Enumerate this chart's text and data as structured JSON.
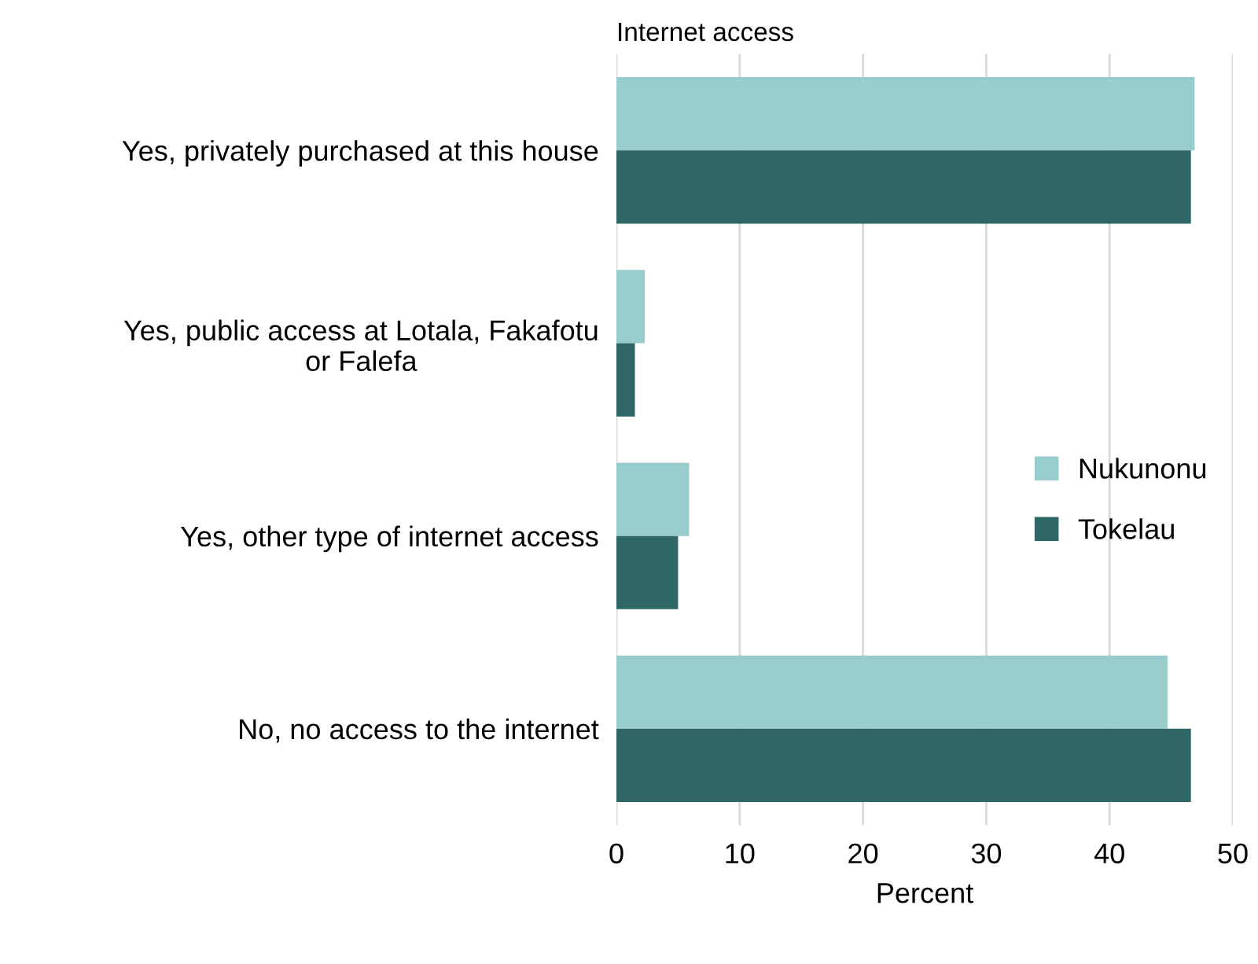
{
  "chart_data": {
    "type": "bar",
    "orientation": "horizontal",
    "title": "Internet access",
    "xlabel": "Percent",
    "categories": [
      "Yes, privately purchased at this house",
      "Yes, public access at Lotala, Fakafotu\nor Falefa",
      "Yes, other type of internet access",
      "No, no access to the internet"
    ],
    "series": [
      {
        "name": "Nukunonu",
        "color": "#99cccc",
        "values": [
          46.9,
          2.3,
          5.9,
          44.7
        ]
      },
      {
        "name": "Tokelau",
        "color": "#2f6666",
        "values": [
          46.6,
          1.5,
          5.0,
          46.6
        ]
      }
    ],
    "xlim": [
      0,
      50
    ],
    "xticks": [
      0,
      10,
      20,
      30,
      40,
      50
    ],
    "grid": "x",
    "legend": "right"
  }
}
